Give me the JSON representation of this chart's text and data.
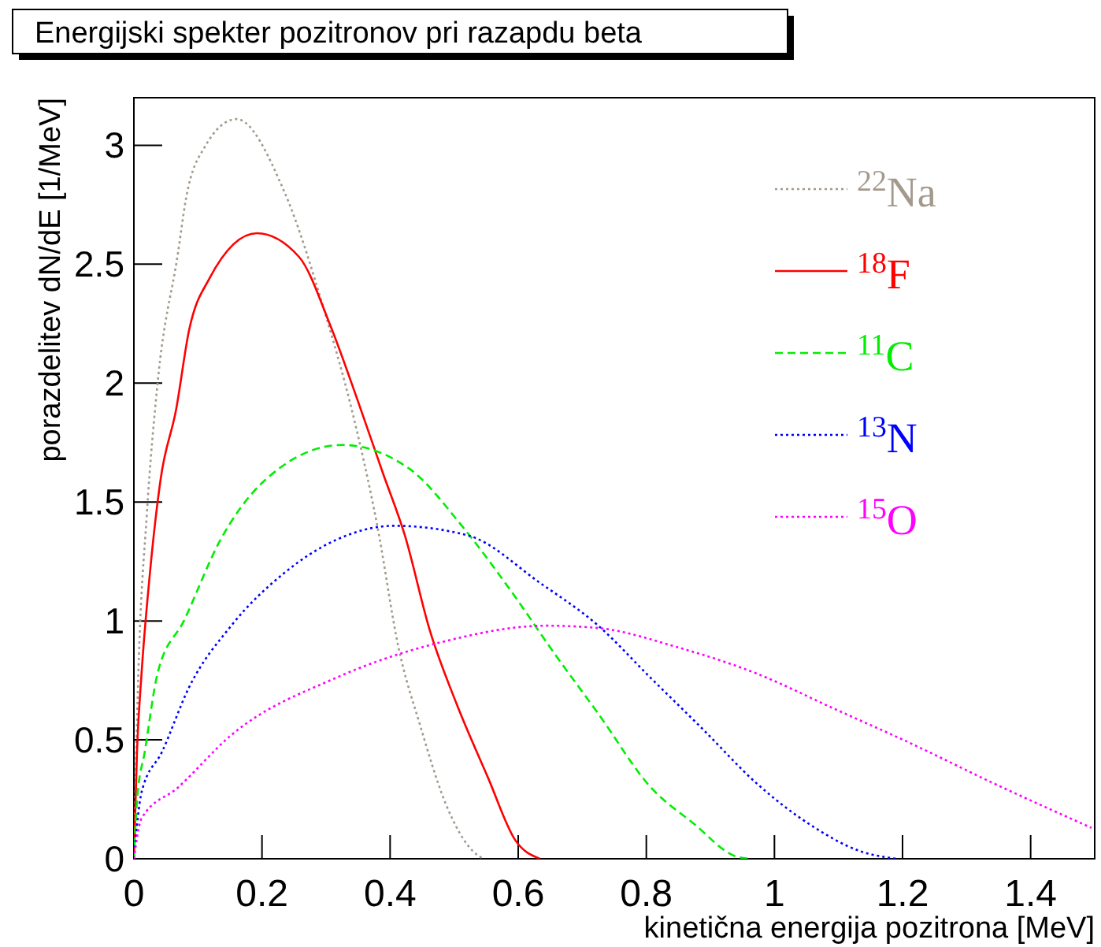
{
  "chart_data": {
    "type": "line",
    "title": "Energijski spekter pozitronov pri razapdu beta",
    "xlabel": "kinetična energija pozitrona [MeV]",
    "ylabel": "porazdelitev dN/dE [1/MeV]",
    "xlim": [
      0,
      1.5
    ],
    "xticks": [
      0,
      0.2,
      0.4,
      0.6,
      0.8,
      1,
      1.2,
      1.4
    ],
    "ylim": [
      0,
      3.2
    ],
    "yticks": [
      0,
      0.5,
      1,
      1.5,
      2,
      2.5,
      3
    ],
    "grid": false,
    "legend": "top right",
    "marker": "none",
    "series": [
      {
        "name": "$^{22}$Na",
        "color": "#a39a8e",
        "line_style": "dotted",
        "x": [
          0,
          0.007,
          0.02,
          0.037,
          0.069,
          0.081,
          0.11,
          0.16,
          0.234,
          0.3,
          0.34,
          0.38,
          0.413,
          0.447,
          0.487,
          0.53,
          0.546
        ],
        "values": [
          0,
          0.78,
          1.44,
          2.0,
          2.55,
          2.77,
          2.99,
          3.11,
          2.81,
          2.28,
          1.89,
          1.4,
          0.89,
          0.56,
          0.23,
          0.03,
          0
        ]
      },
      {
        "name": "$^{18}$F",
        "color": "#ff0000",
        "line_style": "solid",
        "x": [
          0,
          0.005,
          0.012,
          0.025,
          0.042,
          0.066,
          0.086,
          0.118,
          0.192,
          0.258,
          0.307,
          0.349,
          0.389,
          0.423,
          0.462,
          0.504,
          0.553,
          0.595,
          0.634
        ],
        "values": [
          0,
          0.46,
          0.78,
          1.2,
          1.6,
          1.89,
          2.22,
          2.44,
          2.63,
          2.53,
          2.24,
          1.93,
          1.62,
          1.36,
          0.96,
          0.65,
          0.34,
          0.08,
          0
        ]
      },
      {
        "name": "$^{11}$C",
        "color": "#00ee00",
        "line_style": "dashed",
        "x": [
          0,
          0.005,
          0.017,
          0.037,
          0.078,
          0.135,
          0.2,
          0.325,
          0.43,
          0.512,
          0.585,
          0.66,
          0.725,
          0.807,
          0.873,
          0.94,
          0.96
        ],
        "values": [
          0,
          0.25,
          0.45,
          0.78,
          1.0,
          1.34,
          1.58,
          1.74,
          1.64,
          1.4,
          1.14,
          0.85,
          0.61,
          0.3,
          0.15,
          0.01,
          0
        ]
      },
      {
        "name": "$^{13}$N",
        "color": "#0000ff",
        "line_style": "dotted",
        "x": [
          0,
          0.012,
          0.044,
          0.086,
          0.152,
          0.234,
          0.315,
          0.406,
          0.521,
          0.634,
          0.725,
          0.807,
          0.89,
          0.971,
          1.052,
          1.136,
          1.19
        ],
        "values": [
          0,
          0.28,
          0.45,
          0.72,
          0.98,
          1.2,
          1.34,
          1.4,
          1.36,
          1.16,
          0.98,
          0.76,
          0.54,
          0.32,
          0.15,
          0.03,
          0
        ]
      },
      {
        "name": "$^{15}$O",
        "color": "#ff00ff",
        "line_style": "dotted",
        "x": [
          0,
          0.012,
          0.069,
          0.152,
          0.315,
          0.479,
          0.644,
          0.725,
          0.848,
          0.971,
          1.094,
          1.217,
          1.34,
          1.495
        ],
        "values": [
          0,
          0.17,
          0.3,
          0.52,
          0.76,
          0.91,
          0.98,
          0.97,
          0.89,
          0.78,
          0.63,
          0.48,
          0.32,
          0.13
        ]
      }
    ]
  }
}
